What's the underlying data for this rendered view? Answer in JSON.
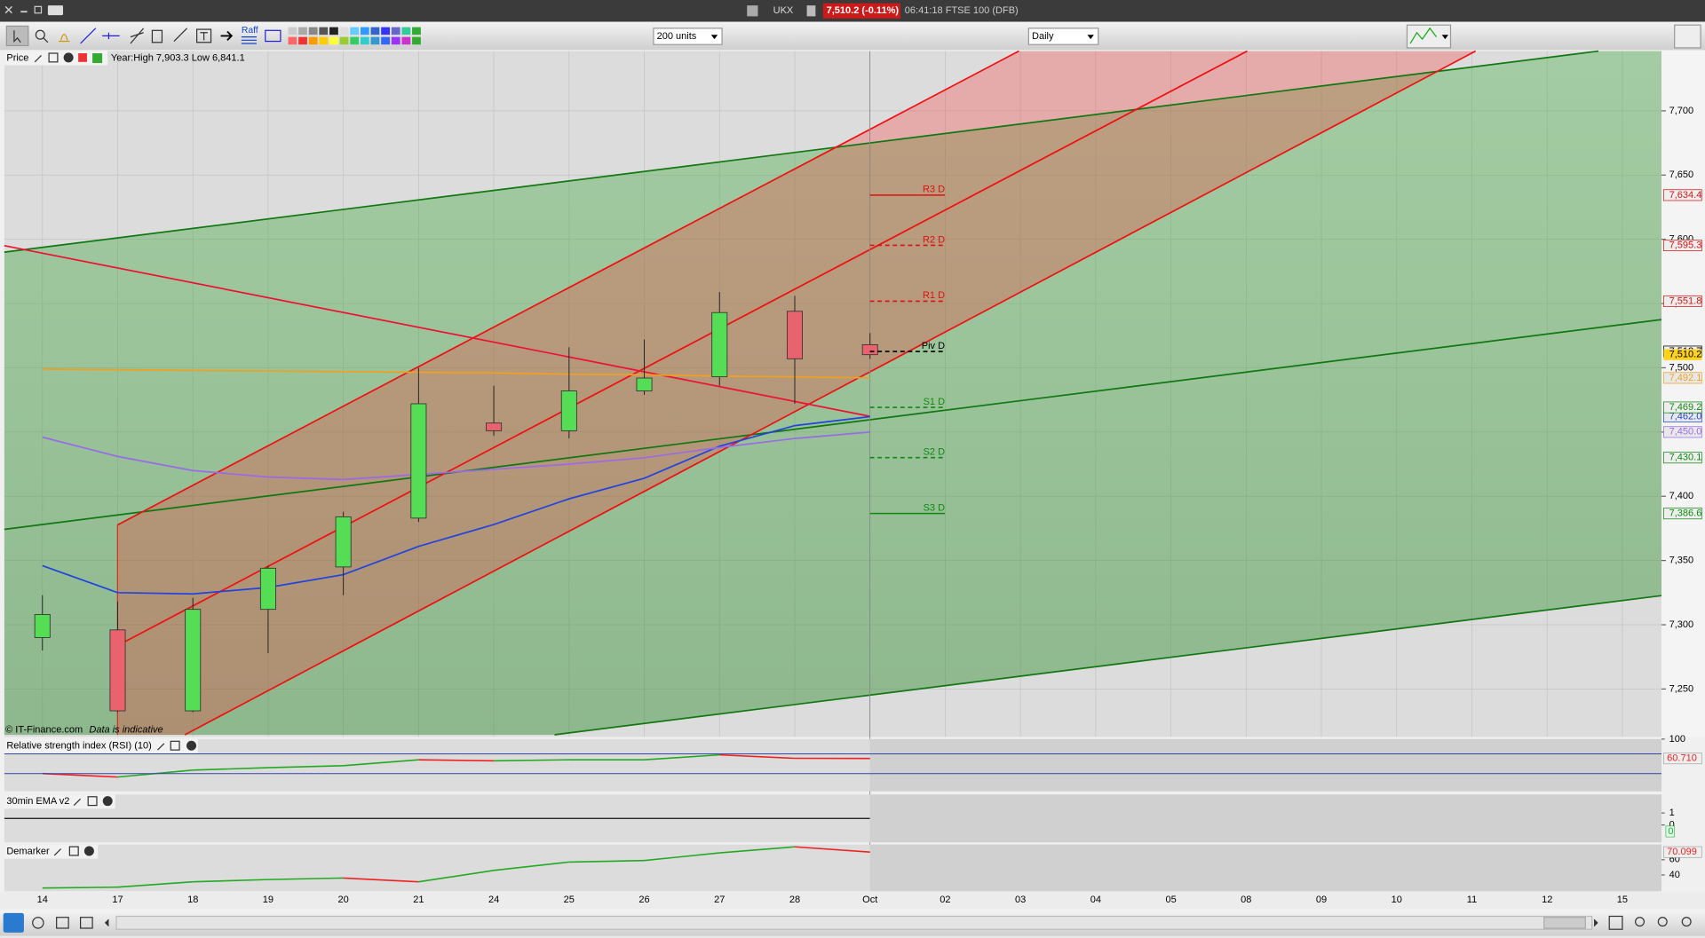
{
  "title_bar": {
    "symbol": "UKX",
    "price": "7,510.2 (-0.11%)",
    "info": "06:41:18 FTSE 100 (DFB)"
  },
  "toolbar": {
    "raff": "Raff",
    "units": "200 units",
    "interval": "Daily"
  },
  "dates": [
    "14",
    "17",
    "18",
    "19",
    "20",
    "21",
    "24",
    "25",
    "26",
    "27",
    "28",
    "Oct",
    "02",
    "03",
    "04",
    "05",
    "08",
    "09",
    "10",
    "11",
    "12",
    "15"
  ],
  "price_panel": {
    "title": "Price",
    "year_range": "Year:High 7,903.3 Low 6,841.1",
    "copyright": "© IT-Finance.com",
    "disclaimer": "Data is indicative",
    "ylim": [
      7212.7,
      7746.5
    ],
    "yticks": [
      {
        "value": 7250,
        "label": "7,250"
      },
      {
        "value": 7300,
        "label": "7,300"
      },
      {
        "value": 7350,
        "label": "7,350"
      },
      {
        "value": 7400,
        "label": "7,400"
      },
      {
        "value": 7450,
        "label": "7,450"
      },
      {
        "value": 7500,
        "label": "7,500"
      },
      {
        "value": 7550,
        "label": "7,550"
      },
      {
        "value": 7600,
        "label": "7,600"
      },
      {
        "value": 7650,
        "label": "7,650"
      },
      {
        "value": 7700,
        "label": "7,700"
      }
    ],
    "candles": [
      {
        "open": 7290,
        "high": 7323,
        "low": 7280,
        "close": 7308
      },
      {
        "open": 7296,
        "high": 7318,
        "low": 7232,
        "close": 7233
      },
      {
        "open": 7233,
        "high": 7321,
        "low": 7232,
        "close": 7312
      },
      {
        "open": 7312,
        "high": 7346,
        "low": 7278,
        "close": 7344
      },
      {
        "open": 7345,
        "high": 7388,
        "low": 7323,
        "close": 7384
      },
      {
        "open": 7383,
        "high": 7500,
        "low": 7380,
        "close": 7472
      },
      {
        "open": 7457,
        "high": 7486,
        "low": 7447,
        "close": 7451
      },
      {
        "open": 7451,
        "high": 7516,
        "low": 7445,
        "close": 7482
      },
      {
        "open": 7482,
        "high": 7522,
        "low": 7479,
        "close": 7492
      },
      {
        "open": 7493,
        "high": 7559,
        "low": 7486,
        "close": 7543
      },
      {
        "open": 7544,
        "high": 7556,
        "low": 7472,
        "close": 7507
      },
      {
        "open": 7518,
        "high": 7527,
        "low": 7507,
        "close": 7510.2
      }
    ],
    "up_color": "#55dd55",
    "down_color": "#e8636e",
    "last": {
      "value": 7510.2,
      "label": "7,510.2"
    },
    "averages": [
      {
        "color": "#f0a020",
        "values": [
          7499,
          7498.5,
          7498,
          7497.5,
          7497,
          7496.5,
          7496,
          7495,
          7494.5,
          7493.5,
          7493,
          7492.1
        ],
        "last_label": "7,492.1"
      },
      {
        "color": "#2244dd",
        "values": [
          7346,
          7325,
          7324,
          7329,
          7339,
          7361,
          7378,
          7398,
          7414,
          7439,
          7455,
          7462.0
        ],
        "last_label": "7,462.0"
      },
      {
        "color": "#9a6ae8",
        "values": [
          7446,
          7431,
          7420,
          7415,
          7413,
          7417,
          7421,
          7425,
          7430,
          7438,
          7445,
          7450.0
        ],
        "last_label": "7,450.0"
      }
    ],
    "pivots": [
      {
        "name": "R3 D",
        "value": 7634.4,
        "label": "7,634.4",
        "color": "#dd1111",
        "dashed": false
      },
      {
        "name": "R2 D",
        "value": 7595.3,
        "label": "7,595.3",
        "color": "#dd1111",
        "dashed": true
      },
      {
        "name": "R1 D",
        "value": 7551.8,
        "label": "7,551.8",
        "color": "#dd1111",
        "dashed": true
      },
      {
        "name": "Piv D",
        "value": 7512.7,
        "label": "7,512.7",
        "color": "#000000",
        "dashed": true
      },
      {
        "name": "S1 D",
        "value": 7469.2,
        "label": "7,469.2",
        "color": "#118811",
        "dashed": true
      },
      {
        "name": "S2 D",
        "value": 7430.1,
        "label": "7,430.1",
        "color": "#118811",
        "dashed": true
      },
      {
        "name": "S3 D",
        "value": 7386.6,
        "label": "7,386.6",
        "color": "#118811",
        "dashed": false
      }
    ]
  },
  "rsi_panel": {
    "title": "Relative strength index (RSI) (10)",
    "ylim": [
      -5.9,
      100
    ],
    "yticks": [
      100
    ],
    "levels": [
      70,
      30
    ],
    "values": [
      30,
      23,
      37,
      42,
      46,
      58,
      56,
      58,
      58,
      68,
      61,
      60.71
    ],
    "last_label": "60.710"
  },
  "ema_panel": {
    "title": "30min EMA v2",
    "yticks": [
      1,
      0
    ],
    "value": 0
  },
  "demarker_panel": {
    "title": "Demarker",
    "ylim": [
      18.6,
      80
    ],
    "yticks": [
      60,
      40
    ],
    "values": [
      22.9,
      24,
      31,
      34,
      36,
      31,
      46,
      57,
      59,
      69,
      77,
      70.099
    ],
    "last_label": "70.099"
  }
}
